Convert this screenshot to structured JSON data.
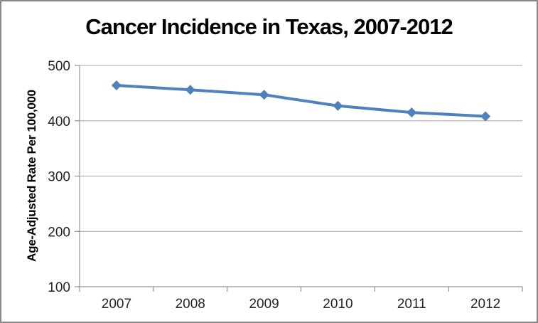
{
  "chart_data": {
    "type": "line",
    "title": "Cancer Incidence in Texas, 2007-2012",
    "x": [
      "2007",
      "2008",
      "2009",
      "2010",
      "2011",
      "2012"
    ],
    "values": [
      464,
      456,
      447,
      427,
      415,
      408
    ],
    "xlabel": "",
    "ylabel": "Age-Adjusted Rate Per 100,000",
    "ylim": [
      100,
      500
    ],
    "yticks": [
      100,
      200,
      300,
      400,
      500
    ],
    "grid": true,
    "legend": "none",
    "marker": "diamond",
    "colors": {
      "series": "#4F81BD",
      "gridline": "#A3A3A3",
      "axis": "#7F7F7F",
      "tick_label": "#262626",
      "title": "#000000",
      "border": "#898989"
    }
  }
}
